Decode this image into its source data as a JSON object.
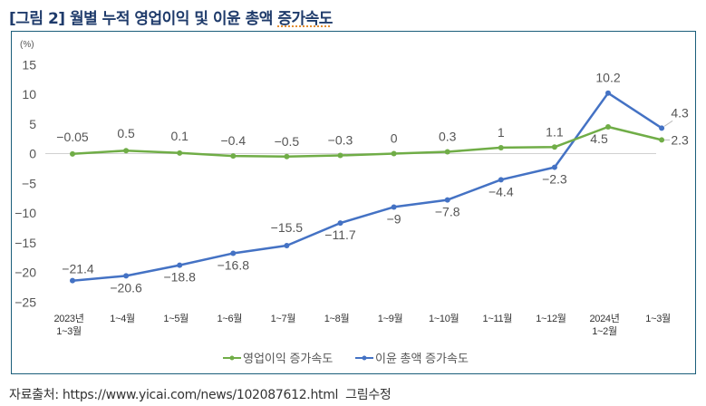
{
  "figure": {
    "title_prefix": "[그림 2] 월별 누적 영업이익 및 이윤 총액 ",
    "title_spell": "증가속도",
    "source_label": "자료출처: https://www.yicai.com/news/102087612.html",
    "source_note": "그림수정"
  },
  "chart_data": {
    "type": "line",
    "title": "월별 누적 영업이익 및 이윤 총액 증가속도",
    "ylabel": "(%)",
    "xlabel": "",
    "ylim": [
      -25,
      15
    ],
    "yticks": [
      "15",
      "10",
      "5",
      "0",
      "-5",
      "-10",
      "-15",
      "-20",
      "-25"
    ],
    "ytick_values": [
      15,
      10,
      5,
      0,
      -5,
      -10,
      -15,
      -20,
      -25
    ],
    "grid": false,
    "legend_position": "bottom",
    "categories": [
      [
        "2023년",
        "1~3월"
      ],
      [
        "1~4월"
      ],
      [
        "1~5월"
      ],
      [
        "1~6월"
      ],
      [
        "1~7월"
      ],
      [
        "1~8월"
      ],
      [
        "1~9월"
      ],
      [
        "1~10월"
      ],
      [
        "1~11월"
      ],
      [
        "1~12월"
      ],
      [
        "2024년",
        "1~2월"
      ],
      [
        "1~3월"
      ]
    ],
    "series": [
      {
        "name": "영업이익 증가속도",
        "color": "#70ad47",
        "values": [
          -0.05,
          0.5,
          0.1,
          -0.4,
          -0.5,
          -0.3,
          0,
          0.3,
          1,
          1.1,
          4.5,
          2.3
        ],
        "labels": [
          "−0.05",
          "0.5",
          "0.1",
          "−0.4",
          "−0.5",
          "−0.3",
          "0",
          "0.3",
          "1",
          "1.1",
          "4.5",
          "2.3"
        ]
      },
      {
        "name": "이윤 총액 증가속도",
        "color": "#4472c4",
        "values": [
          -21.4,
          -20.6,
          -18.8,
          -16.8,
          -15.5,
          -11.7,
          -9,
          -7.8,
          -4.4,
          -2.3,
          10.2,
          4.3
        ],
        "labels": [
          "−21.4",
          "−20.6",
          "−18.8",
          "−16.8",
          "−15.5",
          "−11.7",
          "−9",
          "−7.8",
          "−4.4",
          "−2.3",
          "10.2",
          "4.3"
        ]
      }
    ]
  }
}
